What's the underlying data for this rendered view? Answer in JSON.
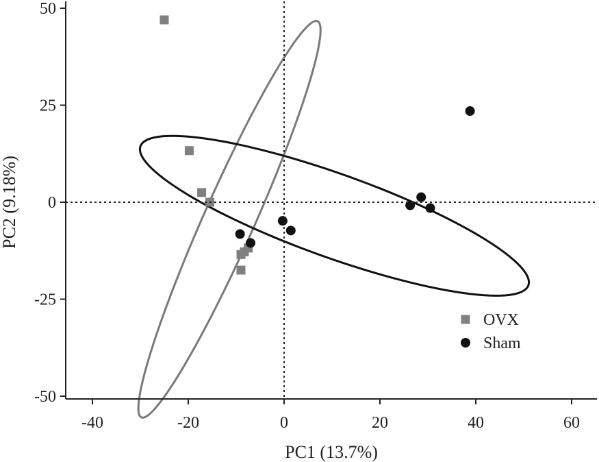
{
  "chart_data": {
    "type": "scatter",
    "title": "",
    "xlabel": "PC1 (13.7%)",
    "ylabel": "PC2 (9.18%)",
    "xlim": [
      -45,
      65
    ],
    "ylim": [
      -51,
      51
    ],
    "xticks": [
      -40,
      -20,
      0,
      20,
      40,
      60
    ],
    "yticks": [
      -50,
      -25,
      0,
      25,
      50
    ],
    "x_tick_labels": [
      "-40",
      "-20",
      "0",
      "20",
      "40",
      "60"
    ],
    "y_tick_labels": [
      "-50",
      "-25",
      "0",
      "25",
      "50"
    ],
    "reference_lines": {
      "x": 0,
      "y": 0,
      "style": "dotted"
    },
    "grid": false,
    "legend_position": "bottom-right",
    "series": [
      {
        "name": "OVX",
        "marker": "square",
        "color": "#808080",
        "points": [
          {
            "x": -25,
            "y": 47
          },
          {
            "x": -19.8,
            "y": 13.3
          },
          {
            "x": -17.2,
            "y": 2.5
          },
          {
            "x": -15.5,
            "y": 0
          },
          {
            "x": -7.5,
            "y": -11.8
          },
          {
            "x": -8.3,
            "y": -12.8
          },
          {
            "x": -9,
            "y": -13.5
          },
          {
            "x": -9,
            "y": -17.5
          }
        ],
        "ellipse": {
          "center": [
            -11.4,
            -4.4
          ],
          "rx": 45.2,
          "ry": 5.3,
          "angle_deg": -66
        }
      },
      {
        "name": "Sham",
        "marker": "circle",
        "color": "#111111",
        "points": [
          {
            "x": -9.2,
            "y": -8.2
          },
          {
            "x": -7,
            "y": -10.5
          },
          {
            "x": -0.3,
            "y": -4.8
          },
          {
            "x": 1.4,
            "y": -7.3
          },
          {
            "x": 26.3,
            "y": -0.8
          },
          {
            "x": 28.6,
            "y": 1.3
          },
          {
            "x": 30.5,
            "y": -1.5
          },
          {
            "x": 38.8,
            "y": 23.5
          }
        ],
        "ellipse": {
          "center": [
            10.5,
            -3.5
          ],
          "rx": 43.0,
          "ry": 8.7,
          "angle_deg": 19.7
        }
      }
    ]
  }
}
